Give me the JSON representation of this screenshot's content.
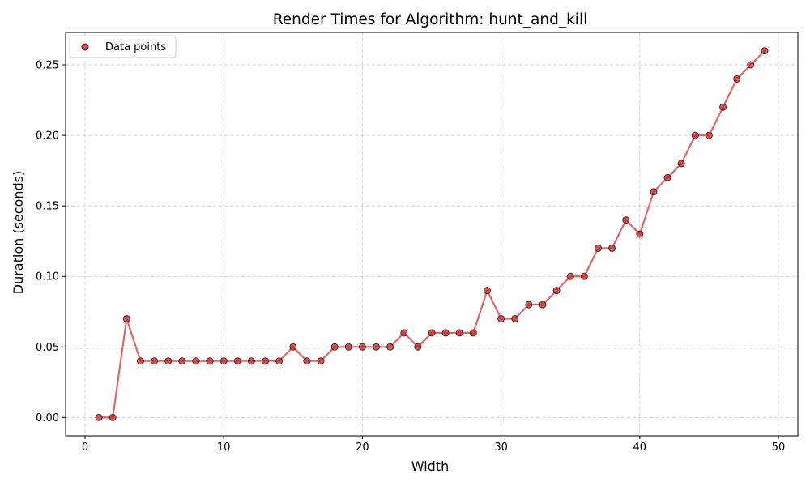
{
  "chart_data": {
    "type": "line",
    "title": "Render Times for Algorithm: hunt_and_kill",
    "xlabel": "Width",
    "ylabel": "Duration (seconds)",
    "xlim": [
      -1.4,
      51.4
    ],
    "ylim": [
      -0.013,
      0.273
    ],
    "xticks": [
      0,
      10,
      20,
      30,
      40,
      50
    ],
    "yticks": [
      0.0,
      0.05,
      0.1,
      0.15,
      0.2,
      0.25
    ],
    "grid": true,
    "legend_position": "top-left",
    "series": [
      {
        "name": "Data points",
        "color": "#d62728",
        "x": [
          1,
          2,
          3,
          4,
          5,
          6,
          7,
          8,
          9,
          10,
          11,
          12,
          13,
          14,
          15,
          16,
          17,
          18,
          19,
          20,
          21,
          22,
          23,
          24,
          25,
          26,
          27,
          28,
          29,
          30,
          31,
          32,
          33,
          34,
          35,
          36,
          37,
          38,
          39,
          40,
          41,
          42,
          43,
          44,
          45,
          46,
          47,
          48,
          49
        ],
        "y": [
          0.0,
          0.0,
          0.07,
          0.04,
          0.04,
          0.04,
          0.04,
          0.04,
          0.04,
          0.04,
          0.04,
          0.04,
          0.04,
          0.04,
          0.05,
          0.04,
          0.04,
          0.05,
          0.05,
          0.05,
          0.05,
          0.05,
          0.06,
          0.05,
          0.06,
          0.06,
          0.06,
          0.06,
          0.09,
          0.07,
          0.07,
          0.08,
          0.08,
          0.09,
          0.1,
          0.1,
          0.12,
          0.12,
          0.14,
          0.13,
          0.16,
          0.17,
          0.18,
          0.2,
          0.2,
          0.22,
          0.24,
          0.25,
          0.26
        ]
      }
    ]
  }
}
